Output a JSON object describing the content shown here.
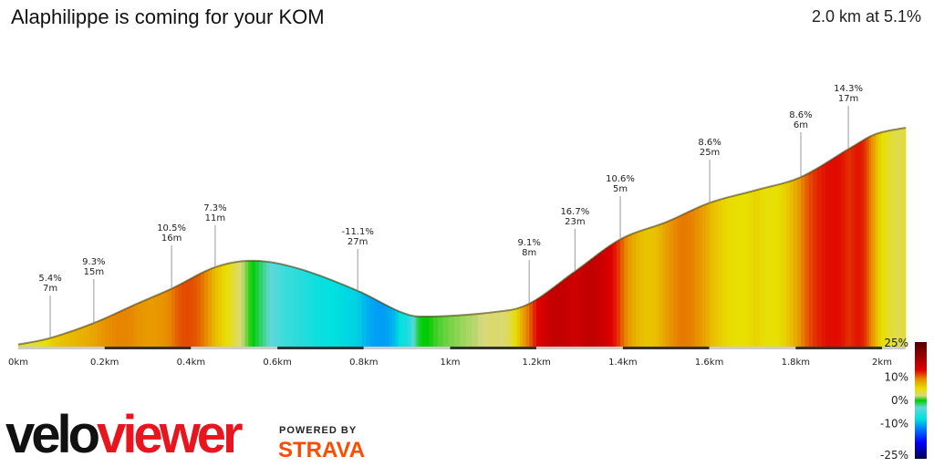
{
  "header": {
    "title": "Alaphilippe is coming for your KOM",
    "summary": "2.0 km at 5.1%"
  },
  "branding": {
    "logo_velo": "velo",
    "logo_viewer": "viewer",
    "powered_by": "POWERED BY",
    "strava": "STRAVA"
  },
  "colors": {
    "strava": "#fc4c02",
    "veloviewer_red": "#e8141e"
  },
  "chart_data": {
    "type": "area",
    "title": "Alaphilippe is coming for your KOM",
    "xlabel": "",
    "ylabel": "",
    "x_unit": "km",
    "xlim": [
      0,
      2.055
    ],
    "x_ticks": [
      "0km",
      "0.2km",
      "0.4km",
      "0.6km",
      "0.8km",
      "1km",
      "1.2km",
      "1.4km",
      "1.6km",
      "1.8km",
      "2km"
    ],
    "x_tick_values": [
      0,
      0.2,
      0.4,
      0.6,
      0.8,
      1.0,
      1.2,
      1.4,
      1.6,
      1.8,
      2.0
    ],
    "profile": [
      [
        0,
        1
      ],
      [
        0.074,
        4
      ],
      [
        0.175,
        11
      ],
      [
        0.275,
        20
      ],
      [
        0.355,
        27
      ],
      [
        0.456,
        37
      ],
      [
        0.549,
        40
      ],
      [
        0.655,
        36
      ],
      [
        0.786,
        26
      ],
      [
        0.887,
        16
      ],
      [
        0.951,
        14
      ],
      [
        1.098,
        16
      ],
      [
        1.183,
        20
      ],
      [
        1.289,
        35
      ],
      [
        1.394,
        50
      ],
      [
        1.5,
        58
      ],
      [
        1.601,
        67
      ],
      [
        1.71,
        73
      ],
      [
        1.812,
        79
      ],
      [
        1.922,
        92
      ],
      [
        1.985,
        99
      ],
      [
        2.055,
        102
      ]
    ],
    "annotations": [
      {
        "km": 0.074,
        "grade": "5.4%",
        "length": "7m"
      },
      {
        "km": 0.175,
        "grade": "9.3%",
        "length": "15m"
      },
      {
        "km": 0.355,
        "grade": "10.5%",
        "length": "16m"
      },
      {
        "km": 0.456,
        "grade": "7.3%",
        "length": "11m"
      },
      {
        "km": 0.786,
        "grade": "-11.1%",
        "length": "27m"
      },
      {
        "km": 1.183,
        "grade": "9.1%",
        "length": "8m"
      },
      {
        "km": 1.289,
        "grade": "16.7%",
        "length": "23m"
      },
      {
        "km": 1.394,
        "grade": "10.6%",
        "length": "5m"
      },
      {
        "km": 1.601,
        "grade": "8.6%",
        "length": "25m"
      },
      {
        "km": 1.812,
        "grade": "8.6%",
        "length": "6m"
      },
      {
        "km": 1.922,
        "grade": "14.3%",
        "length": "17m"
      }
    ],
    "legend": {
      "placement": "right",
      "labels": [
        "25%",
        "10%",
        "0%",
        "-10%",
        "-25%"
      ],
      "range": [
        -25,
        25
      ],
      "stops": [
        [
          -25,
          "#00004a"
        ],
        [
          -18,
          "#0000ff"
        ],
        [
          -12,
          "#0080ff"
        ],
        [
          -8,
          "#00e0e0"
        ],
        [
          -3,
          "#60d8d8"
        ],
        [
          0,
          "#00cc00"
        ],
        [
          2,
          "#d8d880"
        ],
        [
          5,
          "#e8e000"
        ],
        [
          9,
          "#e89000"
        ],
        [
          13,
          "#e00000"
        ],
        [
          25,
          "#500000"
        ]
      ]
    }
  }
}
